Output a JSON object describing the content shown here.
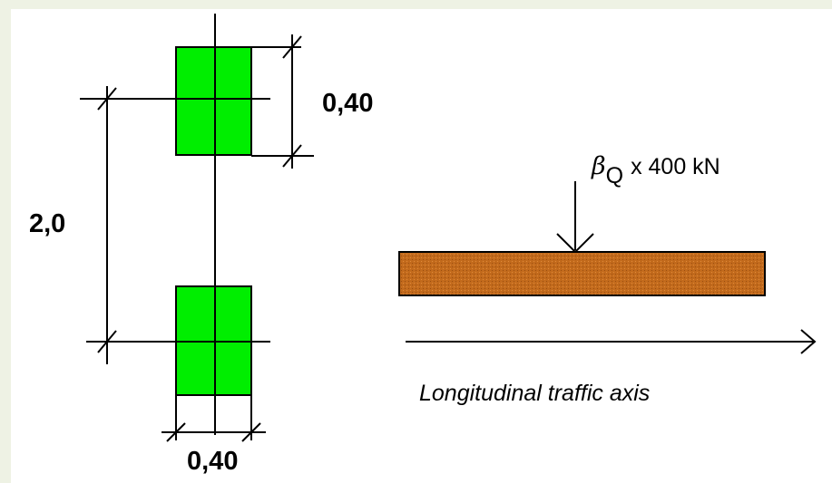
{
  "diagram": {
    "dimensions": {
      "wheel_length": "0,40",
      "axle_spacing": "2,0",
      "wheel_width": "0,40"
    },
    "load": {
      "symbol": "β",
      "subscript": "Q",
      "magnitude": "x 400 kN"
    },
    "axis_caption": "Longitudinal traffic axis",
    "colors": {
      "wheel_patch": "#00ee00",
      "beam": "#c26a1c",
      "lines": "#000000"
    }
  }
}
